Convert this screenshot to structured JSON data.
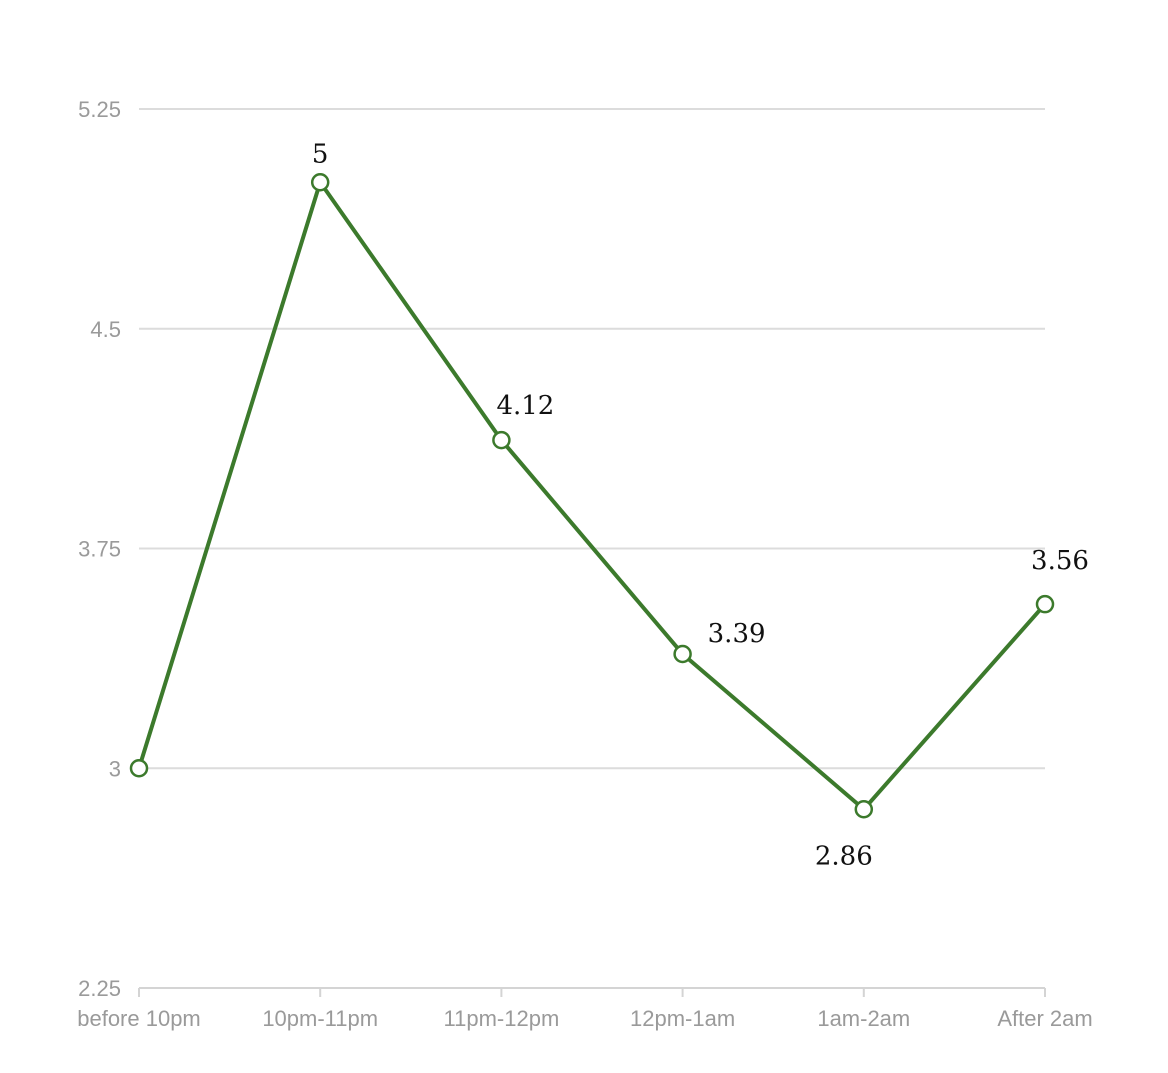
{
  "chart_data": {
    "type": "line",
    "title": "",
    "xlabel": "",
    "ylabel": "",
    "categories": [
      "before 10pm",
      "10pm-11pm",
      "11pm-12pm",
      "12pm-1am",
      "1am-2am",
      "After 2am"
    ],
    "series": [
      {
        "values": [
          3,
          5,
          4.12,
          3.39,
          2.86,
          3.56
        ],
        "data_labels": [
          "",
          "5",
          "4.12",
          "3.39",
          "2.86",
          "3.56"
        ],
        "color": "#3c7a2c"
      }
    ],
    "ylim": [
      2.25,
      5.25
    ],
    "y_ticks": [
      2.25,
      3,
      3.75,
      4.5,
      5.25
    ],
    "y_tick_labels": [
      "2.25",
      "3",
      "3.75",
      "4.5",
      "5.25"
    ],
    "grid": true,
    "legend": "none",
    "colors": {
      "line": "#3c7a2c",
      "grid": "#dcdcdc",
      "tick_text": "#9a9a9a"
    }
  }
}
